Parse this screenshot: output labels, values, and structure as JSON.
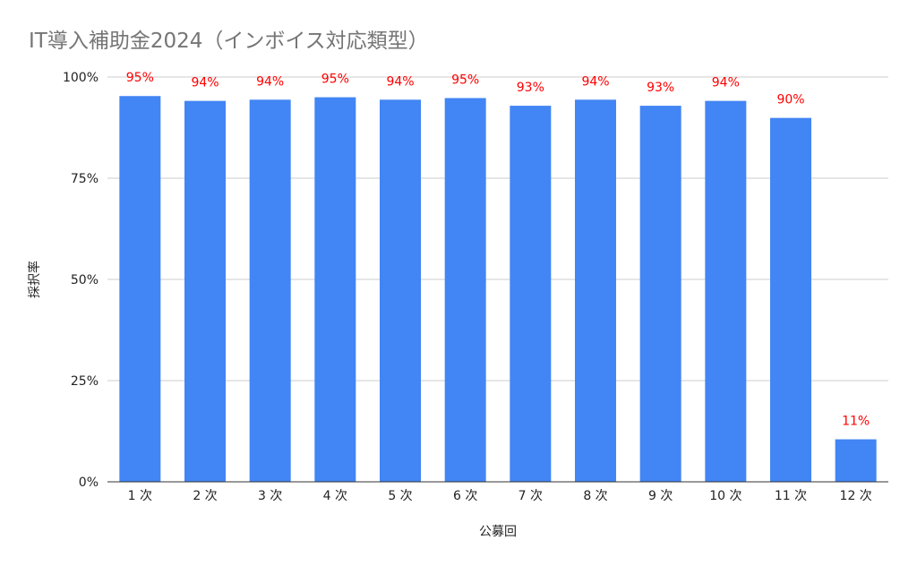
{
  "chart_data": {
    "type": "bar",
    "title": "IT導入補助金2024（インボイス対応類型）",
    "xlabel": "公募回",
    "ylabel": "採択率",
    "categories": [
      "1 次",
      "2 次",
      "3 次",
      "4 次",
      "5 次",
      "6 次",
      "7 次",
      "8 次",
      "9 次",
      "10 次",
      "11 次",
      "12 次"
    ],
    "values": [
      95.3,
      94.1,
      94.4,
      95.0,
      94.4,
      94.8,
      92.9,
      94.4,
      92.9,
      94.1,
      89.9,
      10.5
    ],
    "data_labels": [
      "95%",
      "94%",
      "94%",
      "95%",
      "94%",
      "95%",
      "93%",
      "94%",
      "93%",
      "94%",
      "90%",
      "11%"
    ],
    "yticks": [
      "0%",
      "25%",
      "50%",
      "75%",
      "100%"
    ],
    "ytick_values": [
      0,
      25,
      50,
      75,
      100
    ],
    "ylim": [
      0,
      100
    ],
    "grid": true,
    "legend": "none",
    "colors": {
      "bar": "#4285f4",
      "data_label": "#ff0000",
      "title": "#757575",
      "grid": "#cccccc"
    }
  }
}
